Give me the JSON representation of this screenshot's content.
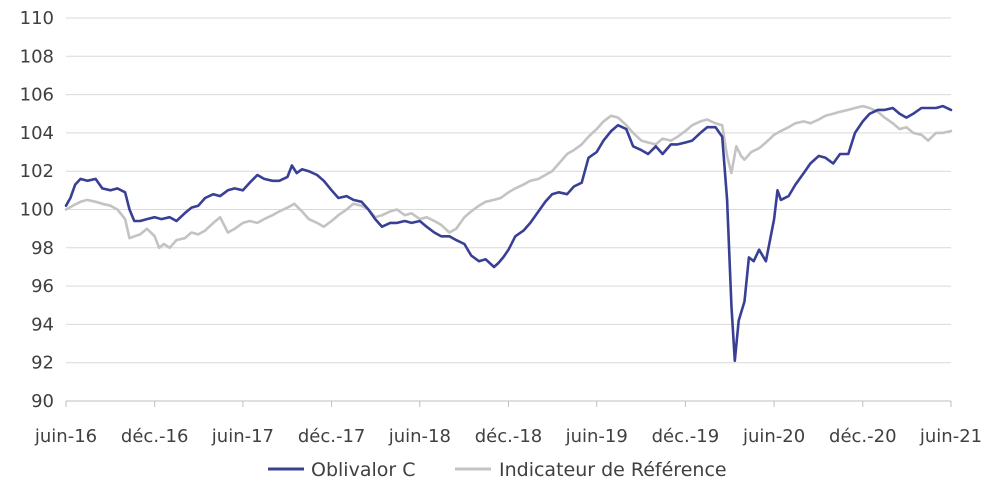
{
  "chart_data": {
    "type": "line",
    "title": "",
    "xlabel": "",
    "ylabel": "",
    "ylim": [
      90,
      110
    ],
    "yticks": [
      90,
      92,
      94,
      96,
      98,
      100,
      102,
      104,
      106,
      108,
      110
    ],
    "x_tick_labels": [
      "juin-16",
      "déc.-16",
      "juin-17",
      "déc.-17",
      "juin-18",
      "déc.-18",
      "juin-19",
      "déc.-19",
      "juin-20",
      "déc.-20",
      "juin-21"
    ],
    "x_tick_dates": [
      "2016-06-01",
      "2016-12-01",
      "2017-06-01",
      "2017-12-01",
      "2018-06-01",
      "2018-12-01",
      "2019-06-01",
      "2019-12-01",
      "2020-06-01",
      "2020-12-01",
      "2021-06-01"
    ],
    "xlim": [
      "2016-06-01",
      "2021-06-01"
    ],
    "grid": true,
    "legend_position": "bottom",
    "series": [
      {
        "name": "Oblivalor C",
        "color": "#3a3f96",
        "points": [
          [
            "2016-06-01",
            100.2
          ],
          [
            "2016-06-10",
            100.6
          ],
          [
            "2016-06-20",
            101.3
          ],
          [
            "2016-07-01",
            101.6
          ],
          [
            "2016-07-15",
            101.5
          ],
          [
            "2016-08-01",
            101.6
          ],
          [
            "2016-08-15",
            101.1
          ],
          [
            "2016-09-01",
            101.0
          ],
          [
            "2016-09-15",
            101.1
          ],
          [
            "2016-10-01",
            100.9
          ],
          [
            "2016-10-10",
            100.0
          ],
          [
            "2016-10-20",
            99.4
          ],
          [
            "2016-11-01",
            99.4
          ],
          [
            "2016-11-15",
            99.5
          ],
          [
            "2016-12-01",
            99.6
          ],
          [
            "2016-12-15",
            99.5
          ],
          [
            "2017-01-01",
            99.6
          ],
          [
            "2017-01-15",
            99.4
          ],
          [
            "2017-02-01",
            99.8
          ],
          [
            "2017-02-15",
            100.1
          ],
          [
            "2017-03-01",
            100.2
          ],
          [
            "2017-03-15",
            100.6
          ],
          [
            "2017-04-01",
            100.8
          ],
          [
            "2017-04-15",
            100.7
          ],
          [
            "2017-05-01",
            101.0
          ],
          [
            "2017-05-15",
            101.1
          ],
          [
            "2017-06-01",
            101.0
          ],
          [
            "2017-06-15",
            101.4
          ],
          [
            "2017-07-01",
            101.8
          ],
          [
            "2017-07-15",
            101.6
          ],
          [
            "2017-08-01",
            101.5
          ],
          [
            "2017-08-15",
            101.5
          ],
          [
            "2017-09-01",
            101.7
          ],
          [
            "2017-09-10",
            102.3
          ],
          [
            "2017-09-20",
            101.9
          ],
          [
            "2017-10-01",
            102.1
          ],
          [
            "2017-10-15",
            102.0
          ],
          [
            "2017-11-01",
            101.8
          ],
          [
            "2017-11-15",
            101.5
          ],
          [
            "2017-12-01",
            101.0
          ],
          [
            "2017-12-15",
            100.6
          ],
          [
            "2018-01-01",
            100.7
          ],
          [
            "2018-01-15",
            100.5
          ],
          [
            "2018-02-01",
            100.4
          ],
          [
            "2018-02-15",
            100.0
          ],
          [
            "2018-03-01",
            99.5
          ],
          [
            "2018-03-15",
            99.1
          ],
          [
            "2018-04-01",
            99.3
          ],
          [
            "2018-04-15",
            99.3
          ],
          [
            "2018-05-01",
            99.4
          ],
          [
            "2018-05-15",
            99.3
          ],
          [
            "2018-06-01",
            99.4
          ],
          [
            "2018-06-15",
            99.1
          ],
          [
            "2018-07-01",
            98.8
          ],
          [
            "2018-07-15",
            98.6
          ],
          [
            "2018-08-01",
            98.6
          ],
          [
            "2018-08-15",
            98.4
          ],
          [
            "2018-09-01",
            98.2
          ],
          [
            "2018-09-15",
            97.6
          ],
          [
            "2018-10-01",
            97.3
          ],
          [
            "2018-10-15",
            97.4
          ],
          [
            "2018-11-01",
            97.0
          ],
          [
            "2018-11-10",
            97.2
          ],
          [
            "2018-11-20",
            97.5
          ],
          [
            "2018-12-01",
            97.9
          ],
          [
            "2018-12-15",
            98.6
          ],
          [
            "2019-01-01",
            98.9
          ],
          [
            "2019-01-15",
            99.3
          ],
          [
            "2019-02-01",
            99.9
          ],
          [
            "2019-02-15",
            100.4
          ],
          [
            "2019-03-01",
            100.8
          ],
          [
            "2019-03-15",
            100.9
          ],
          [
            "2019-04-01",
            100.8
          ],
          [
            "2019-04-15",
            101.2
          ],
          [
            "2019-05-01",
            101.4
          ],
          [
            "2019-05-15",
            102.7
          ],
          [
            "2019-06-01",
            103.0
          ],
          [
            "2019-06-15",
            103.6
          ],
          [
            "2019-07-01",
            104.1
          ],
          [
            "2019-07-15",
            104.4
          ],
          [
            "2019-08-01",
            104.2
          ],
          [
            "2019-08-15",
            103.3
          ],
          [
            "2019-09-01",
            103.1
          ],
          [
            "2019-09-15",
            102.9
          ],
          [
            "2019-10-01",
            103.3
          ],
          [
            "2019-10-15",
            102.9
          ],
          [
            "2019-11-01",
            103.4
          ],
          [
            "2019-11-15",
            103.4
          ],
          [
            "2019-12-01",
            103.5
          ],
          [
            "2019-12-15",
            103.6
          ],
          [
            "2020-01-01",
            104.0
          ],
          [
            "2020-01-15",
            104.3
          ],
          [
            "2020-02-01",
            104.3
          ],
          [
            "2020-02-15",
            103.8
          ],
          [
            "2020-02-25",
            100.5
          ],
          [
            "2020-03-05",
            95.0
          ],
          [
            "2020-03-12",
            92.1
          ],
          [
            "2020-03-20",
            94.2
          ],
          [
            "2020-04-01",
            95.2
          ],
          [
            "2020-04-10",
            97.5
          ],
          [
            "2020-04-20",
            97.3
          ],
          [
            "2020-05-01",
            97.9
          ],
          [
            "2020-05-15",
            97.3
          ],
          [
            "2020-06-01",
            99.5
          ],
          [
            "2020-06-08",
            101.0
          ],
          [
            "2020-06-15",
            100.5
          ],
          [
            "2020-07-01",
            100.7
          ],
          [
            "2020-07-15",
            101.3
          ],
          [
            "2020-08-01",
            101.9
          ],
          [
            "2020-08-15",
            102.4
          ],
          [
            "2020-09-01",
            102.8
          ],
          [
            "2020-09-15",
            102.7
          ],
          [
            "2020-10-01",
            102.4
          ],
          [
            "2020-10-15",
            102.9
          ],
          [
            "2020-11-01",
            102.9
          ],
          [
            "2020-11-15",
            104.0
          ],
          [
            "2020-12-01",
            104.6
          ],
          [
            "2020-12-15",
            105.0
          ],
          [
            "2021-01-01",
            105.2
          ],
          [
            "2021-01-15",
            105.2
          ],
          [
            "2021-02-01",
            105.3
          ],
          [
            "2021-02-15",
            105.0
          ],
          [
            "2021-03-01",
            104.8
          ],
          [
            "2021-03-15",
            105.0
          ],
          [
            "2021-04-01",
            105.3
          ],
          [
            "2021-04-15",
            105.3
          ],
          [
            "2021-05-01",
            105.3
          ],
          [
            "2021-05-15",
            105.4
          ],
          [
            "2021-06-01",
            105.2
          ]
        ]
      },
      {
        "name": "Indicateur de Référence",
        "color": "#c3c3c3",
        "points": [
          [
            "2016-06-01",
            100.0
          ],
          [
            "2016-06-15",
            100.2
          ],
          [
            "2016-07-01",
            100.4
          ],
          [
            "2016-07-15",
            100.5
          ],
          [
            "2016-08-01",
            100.4
          ],
          [
            "2016-08-15",
            100.3
          ],
          [
            "2016-09-01",
            100.2
          ],
          [
            "2016-09-15",
            100.0
          ],
          [
            "2016-10-01",
            99.5
          ],
          [
            "2016-10-10",
            98.5
          ],
          [
            "2016-10-20",
            98.6
          ],
          [
            "2016-11-01",
            98.7
          ],
          [
            "2016-11-15",
            99.0
          ],
          [
            "2016-12-01",
            98.6
          ],
          [
            "2016-12-10",
            98.0
          ],
          [
            "2016-12-20",
            98.2
          ],
          [
            "2017-01-01",
            98.0
          ],
          [
            "2017-01-15",
            98.4
          ],
          [
            "2017-02-01",
            98.5
          ],
          [
            "2017-02-15",
            98.8
          ],
          [
            "2017-03-01",
            98.7
          ],
          [
            "2017-03-15",
            98.9
          ],
          [
            "2017-04-01",
            99.3
          ],
          [
            "2017-04-15",
            99.6
          ],
          [
            "2017-05-01",
            98.8
          ],
          [
            "2017-05-15",
            99.0
          ],
          [
            "2017-06-01",
            99.3
          ],
          [
            "2017-06-15",
            99.4
          ],
          [
            "2017-07-01",
            99.3
          ],
          [
            "2017-07-15",
            99.5
          ],
          [
            "2017-08-01",
            99.7
          ],
          [
            "2017-08-15",
            99.9
          ],
          [
            "2017-09-01",
            100.1
          ],
          [
            "2017-09-15",
            100.3
          ],
          [
            "2017-10-01",
            99.9
          ],
          [
            "2017-10-15",
            99.5
          ],
          [
            "2017-11-01",
            99.3
          ],
          [
            "2017-11-15",
            99.1
          ],
          [
            "2017-12-01",
            99.4
          ],
          [
            "2017-12-15",
            99.7
          ],
          [
            "2018-01-01",
            100.0
          ],
          [
            "2018-01-15",
            100.3
          ],
          [
            "2018-02-01",
            100.2
          ],
          [
            "2018-02-15",
            100.0
          ],
          [
            "2018-03-01",
            99.6
          ],
          [
            "2018-03-15",
            99.7
          ],
          [
            "2018-04-01",
            99.9
          ],
          [
            "2018-04-15",
            100.0
          ],
          [
            "2018-05-01",
            99.7
          ],
          [
            "2018-05-15",
            99.8
          ],
          [
            "2018-06-01",
            99.5
          ],
          [
            "2018-06-15",
            99.6
          ],
          [
            "2018-07-01",
            99.4
          ],
          [
            "2018-07-15",
            99.2
          ],
          [
            "2018-08-01",
            98.8
          ],
          [
            "2018-08-15",
            99.0
          ],
          [
            "2018-09-01",
            99.6
          ],
          [
            "2018-09-15",
            99.9
          ],
          [
            "2018-10-01",
            100.2
          ],
          [
            "2018-10-15",
            100.4
          ],
          [
            "2018-11-01",
            100.5
          ],
          [
            "2018-11-15",
            100.6
          ],
          [
            "2018-12-01",
            100.9
          ],
          [
            "2018-12-15",
            101.1
          ],
          [
            "2019-01-01",
            101.3
          ],
          [
            "2019-01-15",
            101.5
          ],
          [
            "2019-02-01",
            101.6
          ],
          [
            "2019-02-15",
            101.8
          ],
          [
            "2019-03-01",
            102.0
          ],
          [
            "2019-03-15",
            102.4
          ],
          [
            "2019-04-01",
            102.9
          ],
          [
            "2019-04-15",
            103.1
          ],
          [
            "2019-05-01",
            103.4
          ],
          [
            "2019-05-15",
            103.8
          ],
          [
            "2019-06-01",
            104.2
          ],
          [
            "2019-06-15",
            104.6
          ],
          [
            "2019-07-01",
            104.9
          ],
          [
            "2019-07-15",
            104.8
          ],
          [
            "2019-08-01",
            104.4
          ],
          [
            "2019-08-15",
            104.0
          ],
          [
            "2019-09-01",
            103.6
          ],
          [
            "2019-09-15",
            103.5
          ],
          [
            "2019-10-01",
            103.4
          ],
          [
            "2019-10-15",
            103.7
          ],
          [
            "2019-11-01",
            103.6
          ],
          [
            "2019-11-15",
            103.8
          ],
          [
            "2019-12-01",
            104.1
          ],
          [
            "2019-12-15",
            104.4
          ],
          [
            "2020-01-01",
            104.6
          ],
          [
            "2020-01-15",
            104.7
          ],
          [
            "2020-02-01",
            104.5
          ],
          [
            "2020-02-15",
            104.4
          ],
          [
            "2020-02-25",
            102.8
          ],
          [
            "2020-03-05",
            101.9
          ],
          [
            "2020-03-15",
            103.3
          ],
          [
            "2020-03-25",
            102.8
          ],
          [
            "2020-04-01",
            102.6
          ],
          [
            "2020-04-15",
            103.0
          ],
          [
            "2020-05-01",
            103.2
          ],
          [
            "2020-05-15",
            103.5
          ],
          [
            "2020-06-01",
            103.9
          ],
          [
            "2020-06-15",
            104.1
          ],
          [
            "2020-07-01",
            104.3
          ],
          [
            "2020-07-15",
            104.5
          ],
          [
            "2020-08-01",
            104.6
          ],
          [
            "2020-08-15",
            104.5
          ],
          [
            "2020-09-01",
            104.7
          ],
          [
            "2020-09-15",
            104.9
          ],
          [
            "2020-10-01",
            105.0
          ],
          [
            "2020-10-15",
            105.1
          ],
          [
            "2020-11-01",
            105.2
          ],
          [
            "2020-11-15",
            105.3
          ],
          [
            "2020-12-01",
            105.4
          ],
          [
            "2020-12-15",
            105.3
          ],
          [
            "2021-01-01",
            105.1
          ],
          [
            "2021-01-15",
            104.8
          ],
          [
            "2021-02-01",
            104.5
          ],
          [
            "2021-02-15",
            104.2
          ],
          [
            "2021-03-01",
            104.3
          ],
          [
            "2021-03-15",
            104.0
          ],
          [
            "2021-04-01",
            103.9
          ],
          [
            "2021-04-15",
            103.6
          ],
          [
            "2021-05-01",
            104.0
          ],
          [
            "2021-05-15",
            104.0
          ],
          [
            "2021-06-01",
            104.1
          ]
        ]
      }
    ]
  }
}
